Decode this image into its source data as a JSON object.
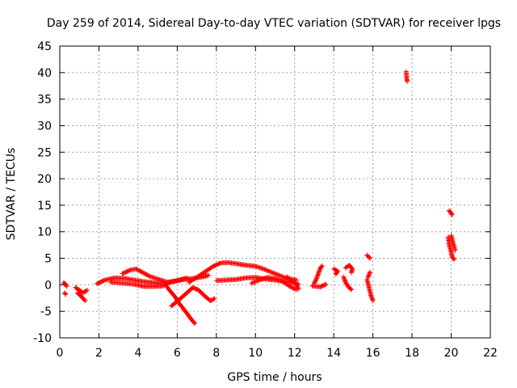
{
  "chart_data": {
    "type": "scatter",
    "title": "Day 259 of 2014, Sidereal Day-to-day VTEC variation (SDTVAR) for receiver lpgs",
    "xlabel": "GPS time / hours",
    "ylabel": "SDTVAR / TECUs",
    "xlim": [
      0,
      22
    ],
    "ylim": [
      -10,
      45
    ],
    "xticks": [
      0,
      2,
      4,
      6,
      8,
      10,
      12,
      14,
      16,
      18,
      20,
      22
    ],
    "yticks": [
      -10,
      -5,
      0,
      5,
      10,
      15,
      20,
      25,
      30,
      35,
      40,
      45
    ],
    "grid": true,
    "marker": "+",
    "color": "#ff0000",
    "series": [
      {
        "name": "SDTVAR",
        "tracks": [
          [
            [
              0.2,
              0.4
            ],
            [
              0.3,
              0.1
            ],
            [
              0.35,
              -0.3
            ]
          ],
          [
            [
              0.25,
              -1.5
            ],
            [
              0.3,
              -1.8
            ]
          ],
          [
            [
              0.8,
              -0.5
            ],
            [
              1.0,
              -1.0
            ],
            [
              1.2,
              -1.5
            ],
            [
              1.4,
              -1.0
            ]
          ],
          [
            [
              0.9,
              -1.5
            ],
            [
              1.1,
              -2.2
            ],
            [
              1.3,
              -3.0
            ]
          ],
          [
            [
              1.9,
              0.2
            ],
            [
              2.3,
              0.9
            ],
            [
              2.8,
              1.3
            ],
            [
              3.3,
              1.2
            ],
            [
              3.8,
              0.9
            ],
            [
              4.3,
              0.6
            ],
            [
              4.8,
              0.4
            ],
            [
              5.3,
              0.1
            ],
            [
              5.8,
              0.6
            ],
            [
              6.3,
              1.0
            ],
            [
              6.8,
              1.2
            ],
            [
              7.3,
              1.5
            ],
            [
              7.6,
              1.8
            ]
          ],
          [
            [
              2.6,
              0.5
            ],
            [
              3.2,
              0.3
            ],
            [
              3.8,
              0.1
            ],
            [
              4.3,
              -0.3
            ],
            [
              4.8,
              -0.3
            ],
            [
              5.3,
              -0.2
            ]
          ],
          [
            [
              3.2,
              2.1
            ],
            [
              3.6,
              2.8
            ],
            [
              3.9,
              3.0
            ],
            [
              4.2,
              2.4
            ],
            [
              4.6,
              1.6
            ],
            [
              5.0,
              1.1
            ],
            [
              5.5,
              0.5
            ],
            [
              6.0,
              0.8
            ],
            [
              6.5,
              1.3
            ]
          ],
          [
            [
              5.4,
              0.0
            ],
            [
              5.6,
              -1.0
            ],
            [
              5.9,
              -2.3
            ],
            [
              6.1,
              -3.5
            ],
            [
              6.4,
              -4.9
            ],
            [
              6.7,
              -6.4
            ],
            [
              6.9,
              -7.3
            ]
          ],
          [
            [
              5.7,
              -4.0
            ],
            [
              6.1,
              -2.8
            ],
            [
              6.5,
              -1.5
            ],
            [
              6.8,
              -0.5
            ],
            [
              7.1,
              -1.0
            ],
            [
              7.4,
              -2.1
            ],
            [
              7.7,
              -3.0
            ],
            [
              7.9,
              -2.6
            ]
          ],
          [
            [
              6.6,
              0.5
            ],
            [
              7.0,
              1.4
            ],
            [
              7.4,
              2.4
            ],
            [
              7.8,
              3.4
            ],
            [
              8.2,
              4.1
            ],
            [
              8.6,
              4.2
            ],
            [
              9.0,
              4.0
            ],
            [
              9.5,
              3.7
            ],
            [
              10.0,
              3.5
            ],
            [
              10.4,
              3.0
            ],
            [
              10.8,
              2.4
            ],
            [
              11.2,
              1.8
            ],
            [
              11.6,
              1.2
            ],
            [
              12.1,
              0.9
            ]
          ],
          [
            [
              8.0,
              0.8
            ],
            [
              8.5,
              0.9
            ],
            [
              9.0,
              1.0
            ],
            [
              9.5,
              1.3
            ],
            [
              10.0,
              1.4
            ],
            [
              10.5,
              1.1
            ],
            [
              11.0,
              0.9
            ],
            [
              11.5,
              0.6
            ],
            [
              12.0,
              0.4
            ],
            [
              12.2,
              0.1
            ]
          ],
          [
            [
              9.8,
              0.3
            ],
            [
              10.2,
              0.9
            ],
            [
              10.6,
              1.4
            ],
            [
              11.0,
              1.2
            ],
            [
              11.4,
              0.6
            ],
            [
              11.8,
              -0.4
            ],
            [
              12.1,
              -0.9
            ]
          ],
          [
            [
              11.6,
              1.5
            ],
            [
              11.9,
              0.6
            ],
            [
              12.1,
              0.0
            ],
            [
              12.2,
              -0.8
            ]
          ],
          [
            [
              13.0,
              0.3
            ],
            [
              13.1,
              1.0
            ],
            [
              13.2,
              2.0
            ],
            [
              13.3,
              3.0
            ],
            [
              13.4,
              3.6
            ]
          ],
          [
            [
              12.9,
              -0.2
            ],
            [
              13.3,
              -0.4
            ],
            [
              13.6,
              0.1
            ]
          ],
          [
            [
              14.0,
              3.0
            ],
            [
              14.2,
              2.6
            ],
            [
              14.1,
              2.0
            ]
          ],
          [
            [
              14.6,
              3.2
            ],
            [
              14.8,
              3.7
            ],
            [
              14.95,
              3.0
            ],
            [
              14.9,
              2.3
            ]
          ],
          [
            [
              14.5,
              1.5
            ],
            [
              14.6,
              0.5
            ],
            [
              14.75,
              -0.4
            ],
            [
              14.9,
              -0.9
            ]
          ],
          [
            [
              15.7,
              5.6
            ],
            [
              15.85,
              5.0
            ]
          ],
          [
            [
              15.7,
              1.0
            ],
            [
              15.8,
              -0.5
            ],
            [
              15.9,
              -2.0
            ],
            [
              16.0,
              -3.0
            ]
          ],
          [
            [
              15.85,
              2.4
            ],
            [
              15.75,
              1.4
            ]
          ],
          [
            [
              17.7,
              40.2
            ],
            [
              17.72,
              39.3
            ],
            [
              17.75,
              38.3
            ]
          ],
          [
            [
              19.9,
              14.0
            ],
            [
              20.05,
              13.2
            ]
          ],
          [
            [
              19.85,
              9.0
            ],
            [
              19.9,
              7.5
            ],
            [
              20.0,
              6.2
            ],
            [
              20.05,
              5.2
            ],
            [
              20.15,
              4.8
            ]
          ],
          [
            [
              20.0,
              9.3
            ],
            [
              20.1,
              7.8
            ],
            [
              20.2,
              6.5
            ]
          ]
        ]
      }
    ]
  }
}
